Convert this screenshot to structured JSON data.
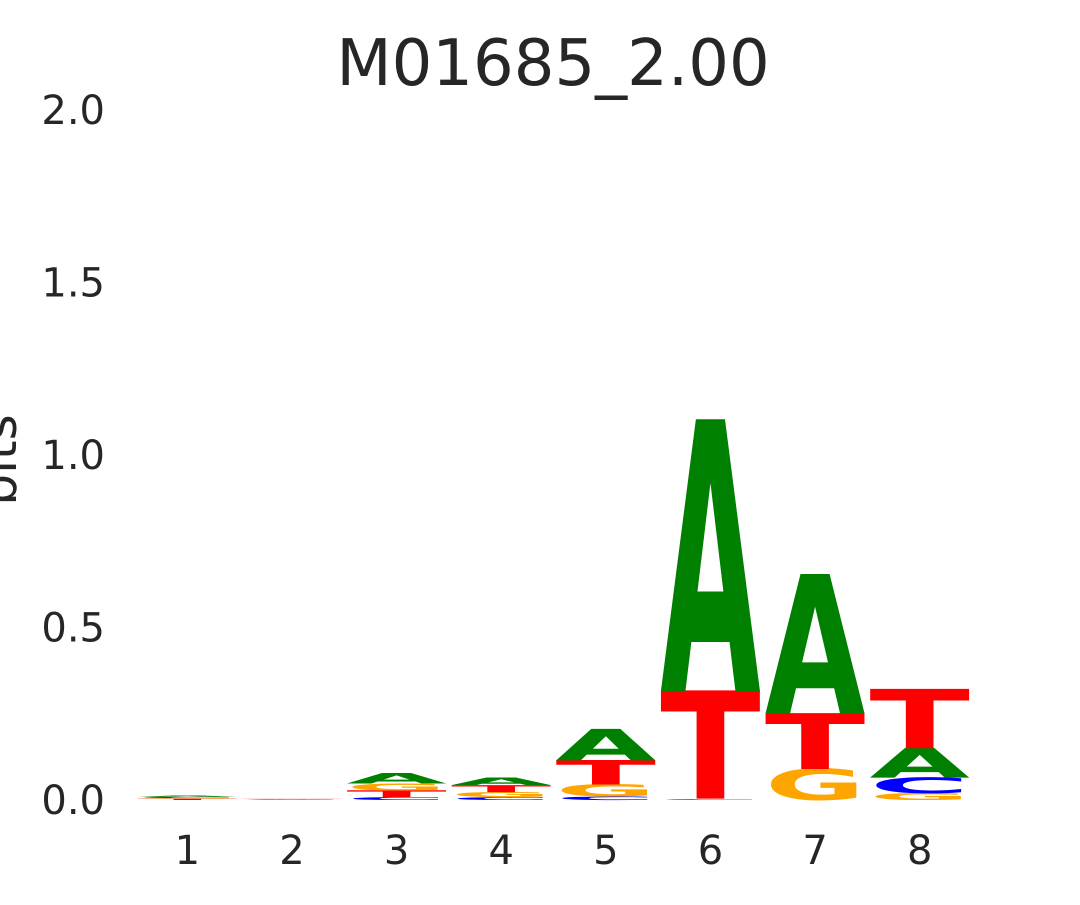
{
  "chart_data": {
    "type": "sequence-logo",
    "title": "M01685_2.00",
    "xlabel": "",
    "ylabel": "bits",
    "ylim": [
      0,
      2
    ],
    "yticks": [
      "0.0",
      "0.5",
      "1.0",
      "1.5",
      "2.0"
    ],
    "ytick_values": [
      0,
      0.5,
      1.0,
      1.5,
      2.0
    ],
    "xticks": [
      "1",
      "2",
      "3",
      "4",
      "5",
      "6",
      "7",
      "8"
    ],
    "grid": false,
    "colors": {
      "A": "#008000",
      "C": "#0000ff",
      "G": "#ffa500",
      "T": "#ff0000"
    },
    "positions": [
      {
        "position": "1",
        "stack": [
          {
            "letter": "T",
            "bits": 0.004
          },
          {
            "letter": "G",
            "bits": 0.002
          },
          {
            "letter": "C",
            "bits": 0.003
          },
          {
            "letter": "A",
            "bits": 0.004
          }
        ]
      },
      {
        "position": "2",
        "stack": [
          {
            "letter": "A",
            "bits": 0.0008
          },
          {
            "letter": "C",
            "bits": 0.0008
          },
          {
            "letter": "G",
            "bits": 0.0008
          },
          {
            "letter": "T",
            "bits": 0.0008
          }
        ]
      },
      {
        "position": "3",
        "stack": [
          {
            "letter": "C",
            "bits": 0.008
          },
          {
            "letter": "T",
            "bits": 0.02
          },
          {
            "letter": "G",
            "bits": 0.02
          },
          {
            "letter": "A",
            "bits": 0.03
          }
        ]
      },
      {
        "position": "4",
        "stack": [
          {
            "letter": "C",
            "bits": 0.008
          },
          {
            "letter": "G",
            "bits": 0.015
          },
          {
            "letter": "T",
            "bits": 0.02
          },
          {
            "letter": "A",
            "bits": 0.022
          }
        ]
      },
      {
        "position": "5",
        "stack": [
          {
            "letter": "C",
            "bits": 0.01
          },
          {
            "letter": "G",
            "bits": 0.035
          },
          {
            "letter": "T",
            "bits": 0.07
          },
          {
            "letter": "A",
            "bits": 0.09
          }
        ]
      },
      {
        "position": "6",
        "stack": [
          {
            "letter": "C",
            "bits": 0.002
          },
          {
            "letter": "G",
            "bits": 0.002
          },
          {
            "letter": "T",
            "bits": 0.31
          },
          {
            "letter": "A",
            "bits": 0.78
          }
        ]
      },
      {
        "position": "7",
        "stack": [
          {
            "letter": "G",
            "bits": 0.09
          },
          {
            "letter": "T",
            "bits": 0.16
          },
          {
            "letter": "A",
            "bits": 0.4
          }
        ]
      },
      {
        "position": "8",
        "stack": [
          {
            "letter": "G",
            "bits": 0.02
          },
          {
            "letter": "C",
            "bits": 0.045
          },
          {
            "letter": "A",
            "bits": 0.085
          },
          {
            "letter": "T",
            "bits": 0.17
          }
        ]
      }
    ]
  }
}
